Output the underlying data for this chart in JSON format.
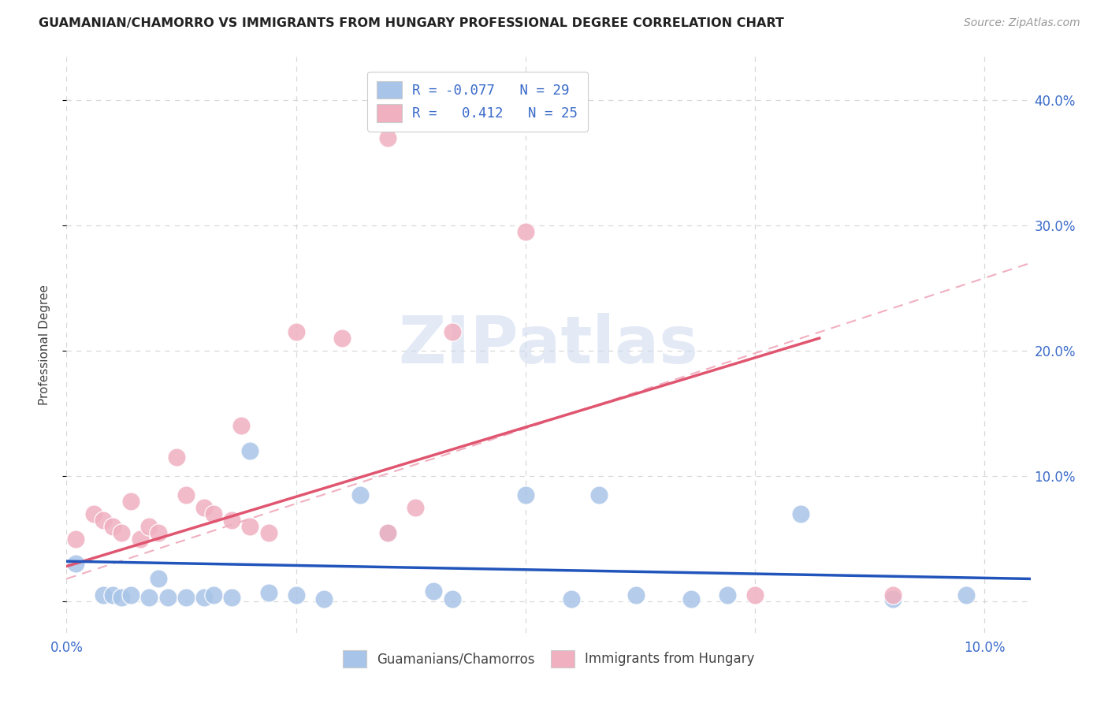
{
  "title": "GUAMANIAN/CHAMORRO VS IMMIGRANTS FROM HUNGARY PROFESSIONAL DEGREE CORRELATION CHART",
  "source": "Source: ZipAtlas.com",
  "ylabel": "Professional Degree",
  "xlim": [
    0.0,
    0.105
  ],
  "ylim": [
    -0.025,
    0.435
  ],
  "yticks": [
    0.0,
    0.1,
    0.2,
    0.3,
    0.4
  ],
  "ytick_labels_right": [
    "",
    "10.0%",
    "20.0%",
    "30.0%",
    "40.0%"
  ],
  "xticks": [
    0.0,
    0.025,
    0.05,
    0.075,
    0.1
  ],
  "xtick_labels": [
    "0.0%",
    "",
    "",
    "",
    "10.0%"
  ],
  "background_color": "#ffffff",
  "grid_color": "#d8d8d8",
  "blue_scatter_color": "#a8c4e8",
  "pink_scatter_color": "#f0b0c0",
  "blue_line_color": "#2255bb",
  "pink_line_color": "#e05570",
  "legend_r_blue": "R = -0.077",
  "legend_n_blue": "N = 29",
  "legend_r_pink": "R =   0.412",
  "legend_n_pink": "N = 25",
  "watermark": "ZIPatlas",
  "blue_points_x": [
    0.001,
    0.004,
    0.005,
    0.006,
    0.007,
    0.009,
    0.01,
    0.011,
    0.013,
    0.015,
    0.016,
    0.018,
    0.02,
    0.022,
    0.025,
    0.028,
    0.032,
    0.035,
    0.04,
    0.042,
    0.05,
    0.055,
    0.058,
    0.062,
    0.068,
    0.072,
    0.08,
    0.09,
    0.098
  ],
  "blue_points_y": [
    0.03,
    0.005,
    0.005,
    0.003,
    0.005,
    0.003,
    0.018,
    0.003,
    0.003,
    0.003,
    0.005,
    0.003,
    0.12,
    0.007,
    0.005,
    0.002,
    0.085,
    0.055,
    0.008,
    0.002,
    0.085,
    0.002,
    0.085,
    0.005,
    0.002,
    0.005,
    0.07,
    0.002,
    0.005
  ],
  "pink_points_x": [
    0.001,
    0.003,
    0.004,
    0.005,
    0.006,
    0.007,
    0.008,
    0.009,
    0.01,
    0.012,
    0.013,
    0.015,
    0.016,
    0.018,
    0.019,
    0.02,
    0.022,
    0.025,
    0.03,
    0.035,
    0.038,
    0.042,
    0.05,
    0.075,
    0.09
  ],
  "pink_points_y": [
    0.05,
    0.07,
    0.065,
    0.06,
    0.055,
    0.08,
    0.05,
    0.06,
    0.055,
    0.115,
    0.085,
    0.075,
    0.07,
    0.065,
    0.14,
    0.06,
    0.055,
    0.215,
    0.21,
    0.055,
    0.075,
    0.215,
    0.295,
    0.005,
    0.005
  ],
  "pink_outlier_x": [
    0.035
  ],
  "pink_outlier_y": [
    0.37
  ],
  "pink_outlier2_x": [
    0.048
  ],
  "pink_outlier2_y": [
    0.295
  ],
  "blue_line_x": [
    0.0,
    0.105
  ],
  "blue_line_y": [
    0.032,
    0.018
  ],
  "pink_line_x": [
    0.0,
    0.082
  ],
  "pink_line_y": [
    0.028,
    0.21
  ],
  "pink_dash_line_x": [
    0.0,
    0.105
  ],
  "pink_dash_line_y": [
    0.018,
    0.27
  ]
}
